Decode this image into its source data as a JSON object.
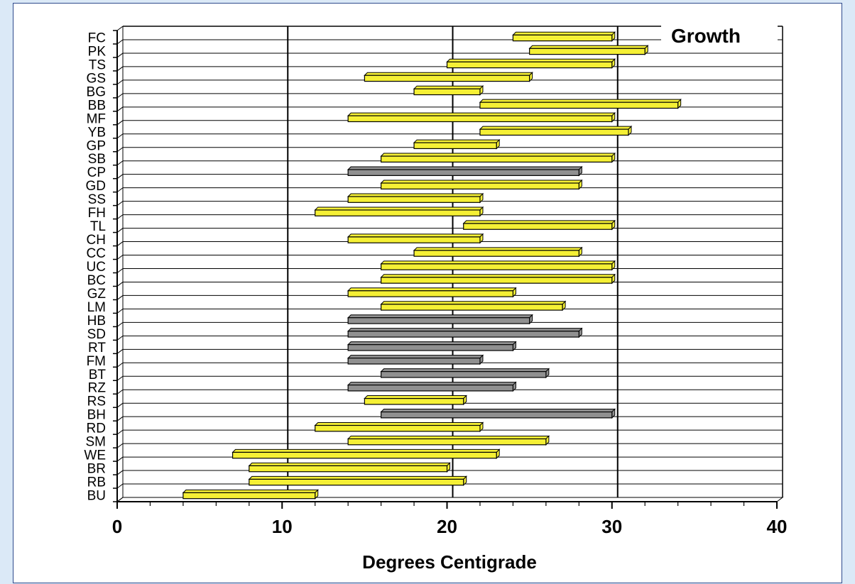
{
  "chart_data": {
    "type": "bar",
    "orientation": "horizontal-range",
    "title": "",
    "xlabel": "Degrees Centigrade",
    "ylabel": "",
    "xlim": [
      0,
      40
    ],
    "x_ticks": [
      "0",
      "10",
      "20",
      "30",
      "40"
    ],
    "grid": "vertical major lines at 10, 20, 30; horizontal line per category",
    "legend": {
      "text": "Growth",
      "position": "top-right"
    },
    "colors": {
      "range_yellow": "#f5f035",
      "range_gray": "#909090",
      "outline": "#000000",
      "background": "#dbe9f7"
    },
    "categories": [
      "FC",
      "PK",
      "TS",
      "GS",
      "BG",
      "BB",
      "MF",
      "YB",
      "GP",
      "SB",
      "CP",
      "GD",
      "SS",
      "FH",
      "TL",
      "CH",
      "CC",
      "UC",
      "BC",
      "GZ",
      "LM",
      "HB",
      "SD",
      "RT",
      "FM",
      "BT",
      "RZ",
      "RS",
      "BH",
      "RD",
      "SM",
      "WE",
      "BR",
      "RB",
      "BU"
    ],
    "ranges": [
      [
        24,
        30
      ],
      [
        25,
        32
      ],
      [
        20,
        30
      ],
      [
        15,
        25
      ],
      [
        18,
        22
      ],
      [
        22,
        34
      ],
      [
        14,
        30
      ],
      [
        22,
        31
      ],
      [
        18,
        23
      ],
      [
        16,
        30
      ],
      [
        14,
        28
      ],
      [
        16,
        28
      ],
      [
        14,
        22
      ],
      [
        12,
        22
      ],
      [
        21,
        30
      ],
      [
        14,
        22
      ],
      [
        18,
        28
      ],
      [
        16,
        30
      ],
      [
        16,
        30
      ],
      [
        14,
        24
      ],
      [
        16,
        27
      ],
      [
        14,
        25
      ],
      [
        14,
        28
      ],
      [
        14,
        24
      ],
      [
        14,
        22
      ],
      [
        16,
        26
      ],
      [
        14,
        24
      ],
      [
        15,
        21
      ],
      [
        16,
        30
      ],
      [
        12,
        22
      ],
      [
        14,
        26
      ],
      [
        7,
        23
      ],
      [
        8,
        20
      ],
      [
        8,
        21
      ],
      [
        4,
        12
      ]
    ],
    "bar_color": [
      "yellow",
      "yellow",
      "yellow",
      "yellow",
      "yellow",
      "yellow",
      "yellow",
      "yellow",
      "yellow",
      "yellow",
      "gray",
      "yellow",
      "yellow",
      "yellow",
      "yellow",
      "yellow",
      "yellow",
      "yellow",
      "yellow",
      "yellow",
      "yellow",
      "gray",
      "gray",
      "gray",
      "gray",
      "gray",
      "gray",
      "yellow",
      "gray",
      "yellow",
      "yellow",
      "yellow",
      "yellow",
      "yellow",
      "yellow"
    ]
  }
}
